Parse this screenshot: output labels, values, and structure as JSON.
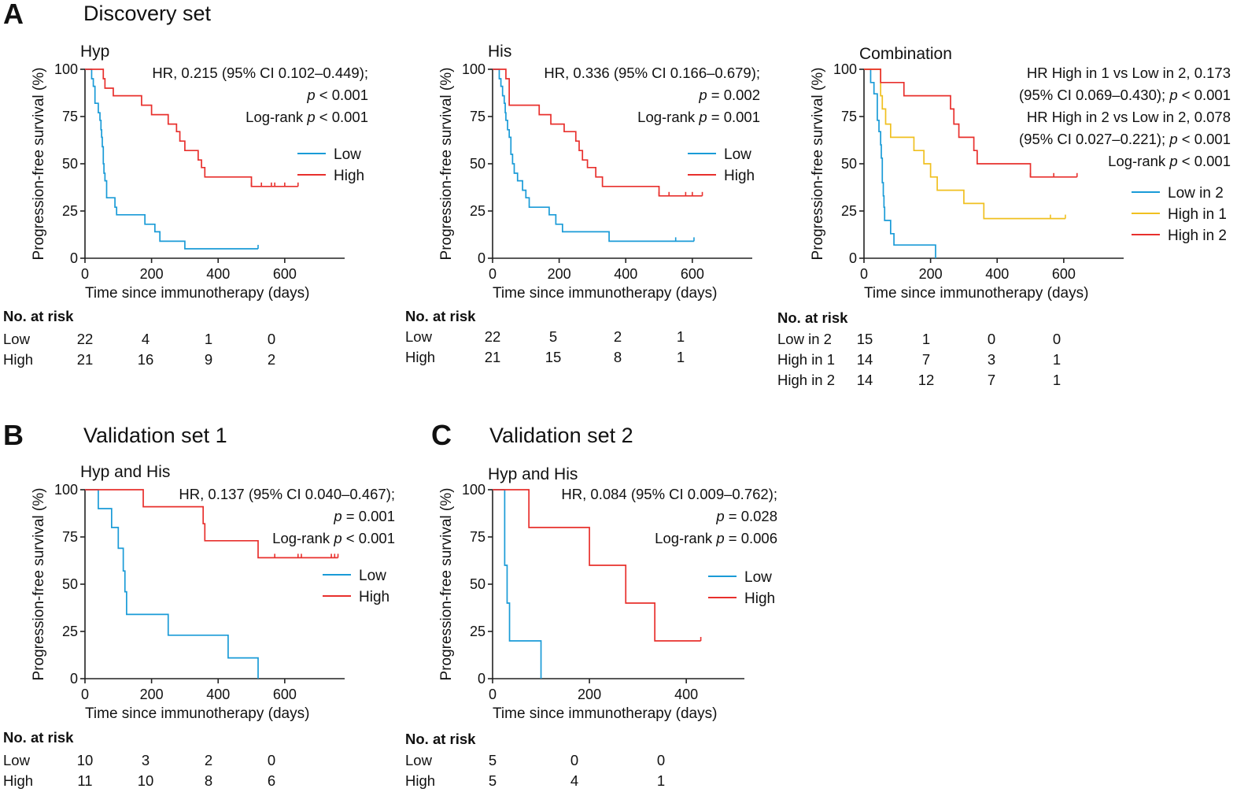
{
  "figure": {
    "panels": [
      {
        "letter": "A",
        "title": "Discovery set"
      },
      {
        "letter": "B",
        "title": "Validation set 1"
      },
      {
        "letter": "C",
        "title": "Validation set 2"
      }
    ]
  },
  "colors": {
    "low": "#1a9bd7",
    "high": "#e8302d",
    "high1": "#f0c020",
    "axis": "#222222"
  },
  "chart_data": [
    {
      "id": "hyp",
      "type": "line",
      "panel": "A",
      "title": "Hyp",
      "xlabel": "Time since immunotherapy (days)",
      "ylabel": "Progression-free survival (%)",
      "xlim": [
        0,
        780
      ],
      "ylim": [
        0,
        100
      ],
      "xticks": [
        0,
        200,
        400,
        600
      ],
      "yticks": [
        0,
        25,
        50,
        75,
        100
      ],
      "annotations": [
        {
          "parts": [
            {
              "t": "HR, 0.215 (95% CI 0.102–0.449);"
            }
          ]
        },
        {
          "parts": [
            {
              "t": "p",
              "i": true
            },
            {
              "t": " < 0.001"
            }
          ]
        },
        {
          "parts": [
            {
              "t": "Log-rank "
            },
            {
              "t": "p",
              "i": true
            },
            {
              "t": " < 0.001"
            }
          ]
        }
      ],
      "series": [
        {
          "name": "Low",
          "color": "low",
          "steps": [
            [
              0,
              100
            ],
            [
              20,
              95
            ],
            [
              25,
              91
            ],
            [
              30,
              82
            ],
            [
              40,
              77
            ],
            [
              45,
              73
            ],
            [
              48,
              68
            ],
            [
              50,
              64
            ],
            [
              52,
              59
            ],
            [
              55,
              50
            ],
            [
              57,
              45
            ],
            [
              60,
              41
            ],
            [
              65,
              32
            ],
            [
              90,
              27
            ],
            [
              95,
              23
            ],
            [
              180,
              18
            ],
            [
              210,
              14
            ],
            [
              225,
              9
            ],
            [
              300,
              5
            ],
            [
              520,
              5
            ]
          ],
          "censors": [
            520
          ]
        },
        {
          "name": "High",
          "color": "high",
          "steps": [
            [
              0,
              100
            ],
            [
              55,
              95
            ],
            [
              60,
              90
            ],
            [
              85,
              86
            ],
            [
              170,
              81
            ],
            [
              200,
              76
            ],
            [
              250,
              71
            ],
            [
              275,
              67
            ],
            [
              285,
              62
            ],
            [
              300,
              57
            ],
            [
              340,
              52
            ],
            [
              350,
              48
            ],
            [
              360,
              43
            ],
            [
              500,
              38
            ],
            [
              640,
              38
            ]
          ],
          "censors": [
            500,
            530,
            560,
            570,
            600,
            640
          ]
        }
      ],
      "risk": {
        "title": "No. at risk",
        "rows": [
          {
            "label": "Low",
            "values": [
              22,
              4,
              1,
              0
            ]
          },
          {
            "label": "High",
            "values": [
              21,
              16,
              9,
              2
            ]
          }
        ]
      }
    },
    {
      "id": "his",
      "type": "line",
      "panel": "A",
      "title": "His",
      "xlabel": "Time since immunotherapy (days)",
      "ylabel": "Progression-free survival (%)",
      "xlim": [
        0,
        780
      ],
      "ylim": [
        0,
        100
      ],
      "xticks": [
        0,
        200,
        400,
        600
      ],
      "yticks": [
        0,
        25,
        50,
        75,
        100
      ],
      "annotations": [
        {
          "parts": [
            {
              "t": "HR, 0.336 (95% CI 0.166–0.679);"
            }
          ]
        },
        {
          "parts": [
            {
              "t": "p",
              "i": true
            },
            {
              "t": " = 0.002"
            }
          ]
        },
        {
          "parts": [
            {
              "t": "Log-rank "
            },
            {
              "t": "p",
              "i": true
            },
            {
              "t": " = 0.001"
            }
          ]
        }
      ],
      "series": [
        {
          "name": "Low",
          "color": "low",
          "steps": [
            [
              0,
              100
            ],
            [
              20,
              95
            ],
            [
              25,
              91
            ],
            [
              30,
              86
            ],
            [
              35,
              82
            ],
            [
              38,
              77
            ],
            [
              40,
              73
            ],
            [
              45,
              68
            ],
            [
              50,
              64
            ],
            [
              55,
              55
            ],
            [
              60,
              50
            ],
            [
              65,
              45
            ],
            [
              75,
              41
            ],
            [
              90,
              36
            ],
            [
              100,
              32
            ],
            [
              110,
              27
            ],
            [
              170,
              23
            ],
            [
              190,
              18
            ],
            [
              210,
              14
            ],
            [
              350,
              9
            ],
            [
              605,
              9
            ]
          ],
          "censors": [
            550,
            605
          ]
        },
        {
          "name": "High",
          "color": "high",
          "steps": [
            [
              0,
              100
            ],
            [
              40,
              95
            ],
            [
              50,
              81
            ],
            [
              140,
              76
            ],
            [
              175,
              71
            ],
            [
              215,
              67
            ],
            [
              250,
              62
            ],
            [
              260,
              57
            ],
            [
              270,
              52
            ],
            [
              285,
              48
            ],
            [
              310,
              43
            ],
            [
              330,
              38
            ],
            [
              500,
              33
            ],
            [
              630,
              33
            ]
          ],
          "censors": [
            500,
            530,
            580,
            600,
            630
          ]
        }
      ],
      "risk": {
        "title": "No. at risk",
        "rows": [
          {
            "label": "Low",
            "values": [
              22,
              5,
              2,
              1
            ]
          },
          {
            "label": "High",
            "values": [
              21,
              15,
              8,
              1
            ]
          }
        ]
      }
    },
    {
      "id": "combination",
      "type": "line",
      "panel": "A",
      "title": "Combination",
      "xlabel": "Time since immunotherapy (days)",
      "ylabel": "Progression-free survival (%)",
      "xlim": [
        0,
        780
      ],
      "ylim": [
        0,
        100
      ],
      "xticks": [
        0,
        200,
        400,
        600
      ],
      "yticks": [
        0,
        25,
        50,
        75,
        100
      ],
      "annotations": [
        {
          "parts": [
            {
              "t": "HR High in 1 vs Low in 2, 0.173"
            }
          ]
        },
        {
          "parts": [
            {
              "t": "(95% CI 0.069–0.430); "
            },
            {
              "t": "p",
              "i": true
            },
            {
              "t": " < 0.001"
            }
          ]
        },
        {
          "parts": [
            {
              "t": "HR High in 2 vs Low in 2, 0.078"
            }
          ]
        },
        {
          "parts": [
            {
              "t": "(95% CI 0.027–0.221); "
            },
            {
              "t": "p",
              "i": true
            },
            {
              "t": " < 0.001"
            }
          ]
        },
        {
          "parts": [
            {
              "t": "Log-rank "
            },
            {
              "t": "p",
              "i": true
            },
            {
              "t": " < 0.001"
            }
          ]
        }
      ],
      "series": [
        {
          "name": "Low in 2",
          "color": "low",
          "steps": [
            [
              0,
              100
            ],
            [
              20,
              93
            ],
            [
              30,
              87
            ],
            [
              40,
              73
            ],
            [
              45,
              67
            ],
            [
              50,
              60
            ],
            [
              52,
              53
            ],
            [
              55,
              40
            ],
            [
              58,
              33
            ],
            [
              60,
              27
            ],
            [
              62,
              20
            ],
            [
              80,
              13
            ],
            [
              90,
              7
            ],
            [
              215,
              0
            ]
          ],
          "censors": []
        },
        {
          "name": "High in 1",
          "color": "high1",
          "steps": [
            [
              0,
              100
            ],
            [
              50,
              86
            ],
            [
              55,
              79
            ],
            [
              65,
              71
            ],
            [
              80,
              64
            ],
            [
              150,
              57
            ],
            [
              180,
              50
            ],
            [
              200,
              43
            ],
            [
              220,
              36
            ],
            [
              300,
              29
            ],
            [
              360,
              21
            ],
            [
              605,
              21
            ]
          ],
          "censors": [
            560,
            605
          ]
        },
        {
          "name": "High in 2",
          "color": "high",
          "steps": [
            [
              0,
              100
            ],
            [
              50,
              93
            ],
            [
              120,
              86
            ],
            [
              260,
              79
            ],
            [
              270,
              71
            ],
            [
              285,
              64
            ],
            [
              330,
              57
            ],
            [
              340,
              50
            ],
            [
              500,
              43
            ],
            [
              640,
              43
            ]
          ],
          "censors": [
            500,
            570,
            640
          ]
        }
      ],
      "risk": {
        "title": "No. at risk",
        "rows": [
          {
            "label": "Low in 2",
            "values": [
              15,
              1,
              0,
              0
            ]
          },
          {
            "label": "High in 1",
            "values": [
              14,
              7,
              3,
              1
            ]
          },
          {
            "label": "High in 2",
            "values": [
              14,
              12,
              7,
              1
            ]
          }
        ]
      }
    },
    {
      "id": "val1",
      "type": "line",
      "panel": "B",
      "title": "Hyp and His",
      "xlabel": "Time since immunotherapy (days)",
      "ylabel": "Progression-free survival (%)",
      "xlim": [
        0,
        780
      ],
      "ylim": [
        0,
        100
      ],
      "xticks": [
        0,
        200,
        400,
        600
      ],
      "yticks": [
        0,
        25,
        50,
        75,
        100
      ],
      "annotations": [
        {
          "parts": [
            {
              "t": "HR, 0.137 (95% CI 0.040–0.467);"
            }
          ]
        },
        {
          "parts": [
            {
              "t": "p",
              "i": true
            },
            {
              "t": " = 0.001"
            }
          ]
        },
        {
          "parts": [
            {
              "t": "Log-rank "
            },
            {
              "t": "p",
              "i": true
            },
            {
              "t": " < 0.001"
            }
          ]
        }
      ],
      "series": [
        {
          "name": "Low",
          "color": "low",
          "steps": [
            [
              0,
              100
            ],
            [
              40,
              90
            ],
            [
              80,
              80
            ],
            [
              100,
              69
            ],
            [
              115,
              57
            ],
            [
              120,
              46
            ],
            [
              125,
              34
            ],
            [
              250,
              23
            ],
            [
              430,
              11
            ],
            [
              520,
              0
            ]
          ],
          "censors": []
        },
        {
          "name": "High",
          "color": "high",
          "steps": [
            [
              0,
              100
            ],
            [
              175,
              91
            ],
            [
              355,
              82
            ],
            [
              360,
              73
            ],
            [
              520,
              64
            ],
            [
              760,
              64
            ]
          ],
          "censors": [
            570,
            640,
            650,
            740,
            750,
            760
          ]
        }
      ],
      "risk": {
        "title": "No. at risk",
        "rows": [
          {
            "label": "Low",
            "values": [
              10,
              3,
              2,
              0
            ]
          },
          {
            "label": "High",
            "values": [
              11,
              10,
              8,
              6
            ]
          }
        ]
      }
    },
    {
      "id": "val2",
      "type": "line",
      "panel": "C",
      "title": "Hyp and His",
      "xlabel": "Time since immunotherapy (days)",
      "ylabel": "Progression-free survival (%)",
      "xlim": [
        0,
        520
      ],
      "ylim": [
        0,
        100
      ],
      "xticks": [
        0,
        200,
        400
      ],
      "yticks": [
        0,
        25,
        50,
        75,
        100
      ],
      "annotations": [
        {
          "parts": [
            {
              "t": "HR, 0.084 (95% CI 0.009–0.762);"
            }
          ]
        },
        {
          "parts": [
            {
              "t": "p",
              "i": true
            },
            {
              "t": " = 0.028"
            }
          ]
        },
        {
          "parts": [
            {
              "t": "Log-rank "
            },
            {
              "t": "p",
              "i": true
            },
            {
              "t": " = 0.006"
            }
          ]
        }
      ],
      "series": [
        {
          "name": "Low",
          "color": "low",
          "steps": [
            [
              0,
              100
            ],
            [
              25,
              60
            ],
            [
              30,
              40
            ],
            [
              35,
              20
            ],
            [
              100,
              0
            ]
          ],
          "censors": []
        },
        {
          "name": "High",
          "color": "high",
          "steps": [
            [
              0,
              100
            ],
            [
              75,
              80
            ],
            [
              200,
              60
            ],
            [
              275,
              40
            ],
            [
              335,
              20
            ],
            [
              430,
              20
            ]
          ],
          "censors": [
            430
          ]
        }
      ],
      "risk": {
        "title": "No. at risk",
        "rows": [
          {
            "label": "Low",
            "values": [
              5,
              0,
              0
            ]
          },
          {
            "label": "High",
            "values": [
              5,
              4,
              1
            ]
          }
        ]
      }
    }
  ]
}
